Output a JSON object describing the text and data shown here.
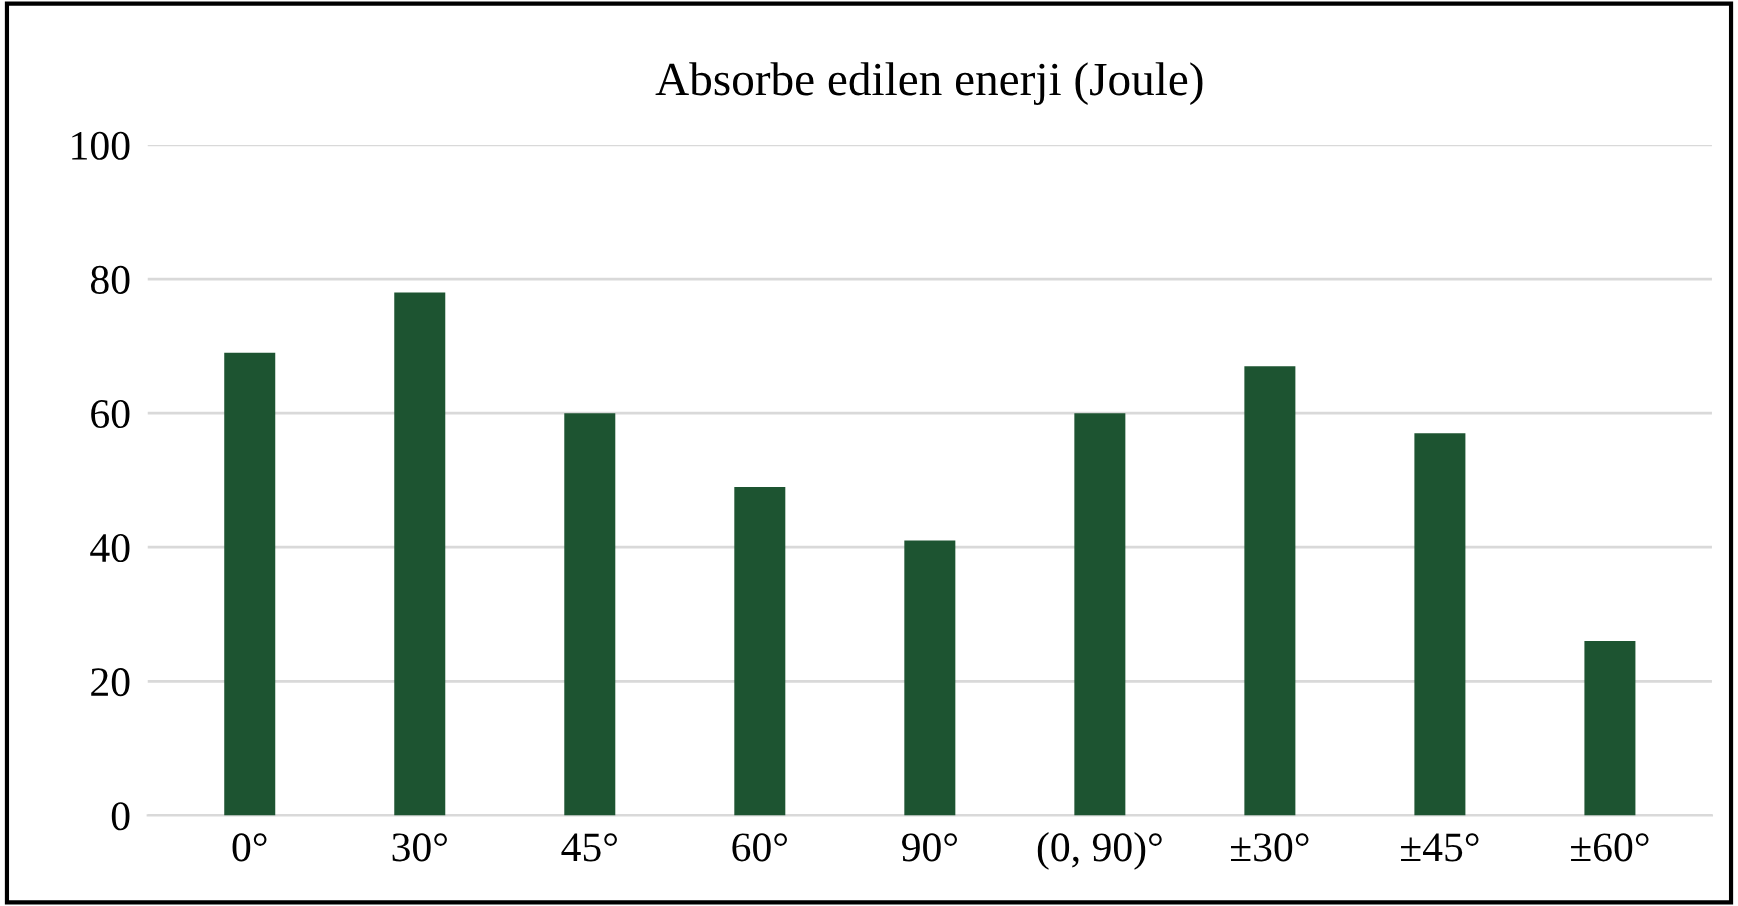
{
  "chart_data": {
    "type": "bar",
    "title": "Absorbe edilen enerji (Joule)",
    "categories": [
      "0°",
      "30°",
      "45°",
      "60°",
      "90°",
      "(0, 90)°",
      "±30°",
      "±45°",
      "±60°"
    ],
    "values": [
      69,
      78,
      60,
      49,
      41,
      60,
      67,
      57,
      26
    ],
    "color": "#1d5431",
    "ylim": [
      0,
      100
    ],
    "yticks": [
      0,
      20,
      40,
      60,
      80,
      100
    ],
    "grid": "y",
    "legend": false
  }
}
